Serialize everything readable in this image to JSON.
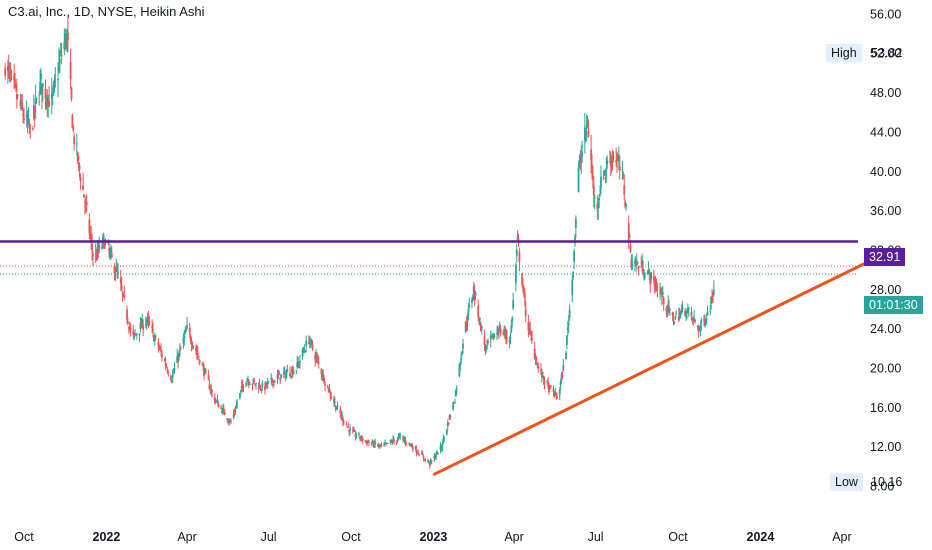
{
  "header": {
    "title": "C3.ai, Inc., 1D, NYSE, Heikin Ashi"
  },
  "price_axis": {
    "high_label": "High",
    "high_value": "53.82",
    "low_label": "Low",
    "low_value": "10.16",
    "level_value": "32.91",
    "countdown": "01:01:30"
  },
  "colors": {
    "up": "#26a69a",
    "down": "#ef5350",
    "level_line": "#5b1e9c",
    "trend_line": "#f0531c",
    "countdown_bg": "#26a69a"
  },
  "chart_data": {
    "type": "candlestick",
    "title": "C3.ai, Inc., 1D, NYSE, Heikin Ashi",
    "ylim": [
      6,
      58
    ],
    "y_ticks": [
      8,
      12,
      16,
      20,
      24,
      28,
      32,
      36,
      40,
      44,
      48,
      52,
      56
    ],
    "y_tick_labels": [
      "8.00",
      "12.00",
      "16.00",
      "20.00",
      "24.00",
      "28.00",
      "32.00",
      "36.00",
      "40.00",
      "44.00",
      "48.00",
      "52.00",
      "56.00"
    ],
    "x_ticks": [
      {
        "date": "2021-10-01",
        "label": "Oct",
        "bold": false
      },
      {
        "date": "2022-01-01",
        "label": "2022",
        "bold": true
      },
      {
        "date": "2022-04-01",
        "label": "Apr",
        "bold": false
      },
      {
        "date": "2022-07-01",
        "label": "Jul",
        "bold": false
      },
      {
        "date": "2022-10-01",
        "label": "Oct",
        "bold": false
      },
      {
        "date": "2023-01-01",
        "label": "2023",
        "bold": true
      },
      {
        "date": "2023-04-01",
        "label": "Apr",
        "bold": false
      },
      {
        "date": "2023-07-01",
        "label": "Jul",
        "bold": false
      },
      {
        "date": "2023-10-01",
        "label": "Oct",
        "bold": false
      },
      {
        "date": "2024-01-01",
        "label": "2024",
        "bold": true
      },
      {
        "date": "2024-04-01",
        "label": "Apr",
        "bold": false
      }
    ],
    "horizontal_level": 32.91,
    "trend_line": {
      "start": [
        "2023-01-01",
        9.2
      ],
      "end": [
        "2024-05-15",
        31.5
      ]
    },
    "current_price": 29.6,
    "previous_close": 30.4,
    "close_path": [
      [
        "2021-09-10",
        51
      ],
      [
        "2021-09-25",
        47
      ],
      [
        "2021-10-08",
        44
      ],
      [
        "2021-10-20",
        49
      ],
      [
        "2021-11-01",
        47
      ],
      [
        "2021-11-12",
        52
      ],
      [
        "2021-11-18",
        54
      ],
      [
        "2021-11-25",
        44
      ],
      [
        "2021-12-08",
        37
      ],
      [
        "2021-12-18",
        31
      ],
      [
        "2021-12-30",
        33
      ],
      [
        "2022-01-15",
        29
      ],
      [
        "2022-01-30",
        23
      ],
      [
        "2022-02-15",
        25
      ],
      [
        "2022-03-01",
        22
      ],
      [
        "2022-03-15",
        19
      ],
      [
        "2022-04-01",
        24
      ],
      [
        "2022-04-15",
        21
      ],
      [
        "2022-05-01",
        17
      ],
      [
        "2022-05-20",
        14.5
      ],
      [
        "2022-06-05",
        19
      ],
      [
        "2022-06-25",
        18
      ],
      [
        "2022-07-10",
        19
      ],
      [
        "2022-08-01",
        20
      ],
      [
        "2022-08-15",
        23
      ],
      [
        "2022-09-01",
        19
      ],
      [
        "2022-09-15",
        16
      ],
      [
        "2022-10-01",
        13.5
      ],
      [
        "2022-10-20",
        12.5
      ],
      [
        "2022-11-05",
        12
      ],
      [
        "2022-11-25",
        13
      ],
      [
        "2022-12-10",
        12
      ],
      [
        "2022-12-28",
        10.3
      ],
      [
        "2023-01-10",
        12
      ],
      [
        "2023-01-25",
        17
      ],
      [
        "2023-02-05",
        24
      ],
      [
        "2023-02-15",
        28
      ],
      [
        "2023-02-28",
        22
      ],
      [
        "2023-03-15",
        24
      ],
      [
        "2023-03-28",
        23
      ],
      [
        "2023-04-05",
        33
      ],
      [
        "2023-04-15",
        25
      ],
      [
        "2023-04-28",
        20
      ],
      [
        "2023-05-10",
        18
      ],
      [
        "2023-05-20",
        17
      ],
      [
        "2023-05-28",
        21
      ],
      [
        "2023-06-05",
        29
      ],
      [
        "2023-06-12",
        40
      ],
      [
        "2023-06-22",
        45
      ],
      [
        "2023-07-01",
        36
      ],
      [
        "2023-07-10",
        40
      ],
      [
        "2023-07-22",
        42
      ],
      [
        "2023-08-01",
        39
      ],
      [
        "2023-08-10",
        31
      ],
      [
        "2023-08-25",
        30
      ],
      [
        "2023-09-10",
        28
      ],
      [
        "2023-09-25",
        25
      ],
      [
        "2023-10-10",
        26
      ],
      [
        "2023-10-25",
        24
      ],
      [
        "2023-11-05",
        26
      ],
      [
        "2023-11-12",
        29
      ]
    ]
  }
}
